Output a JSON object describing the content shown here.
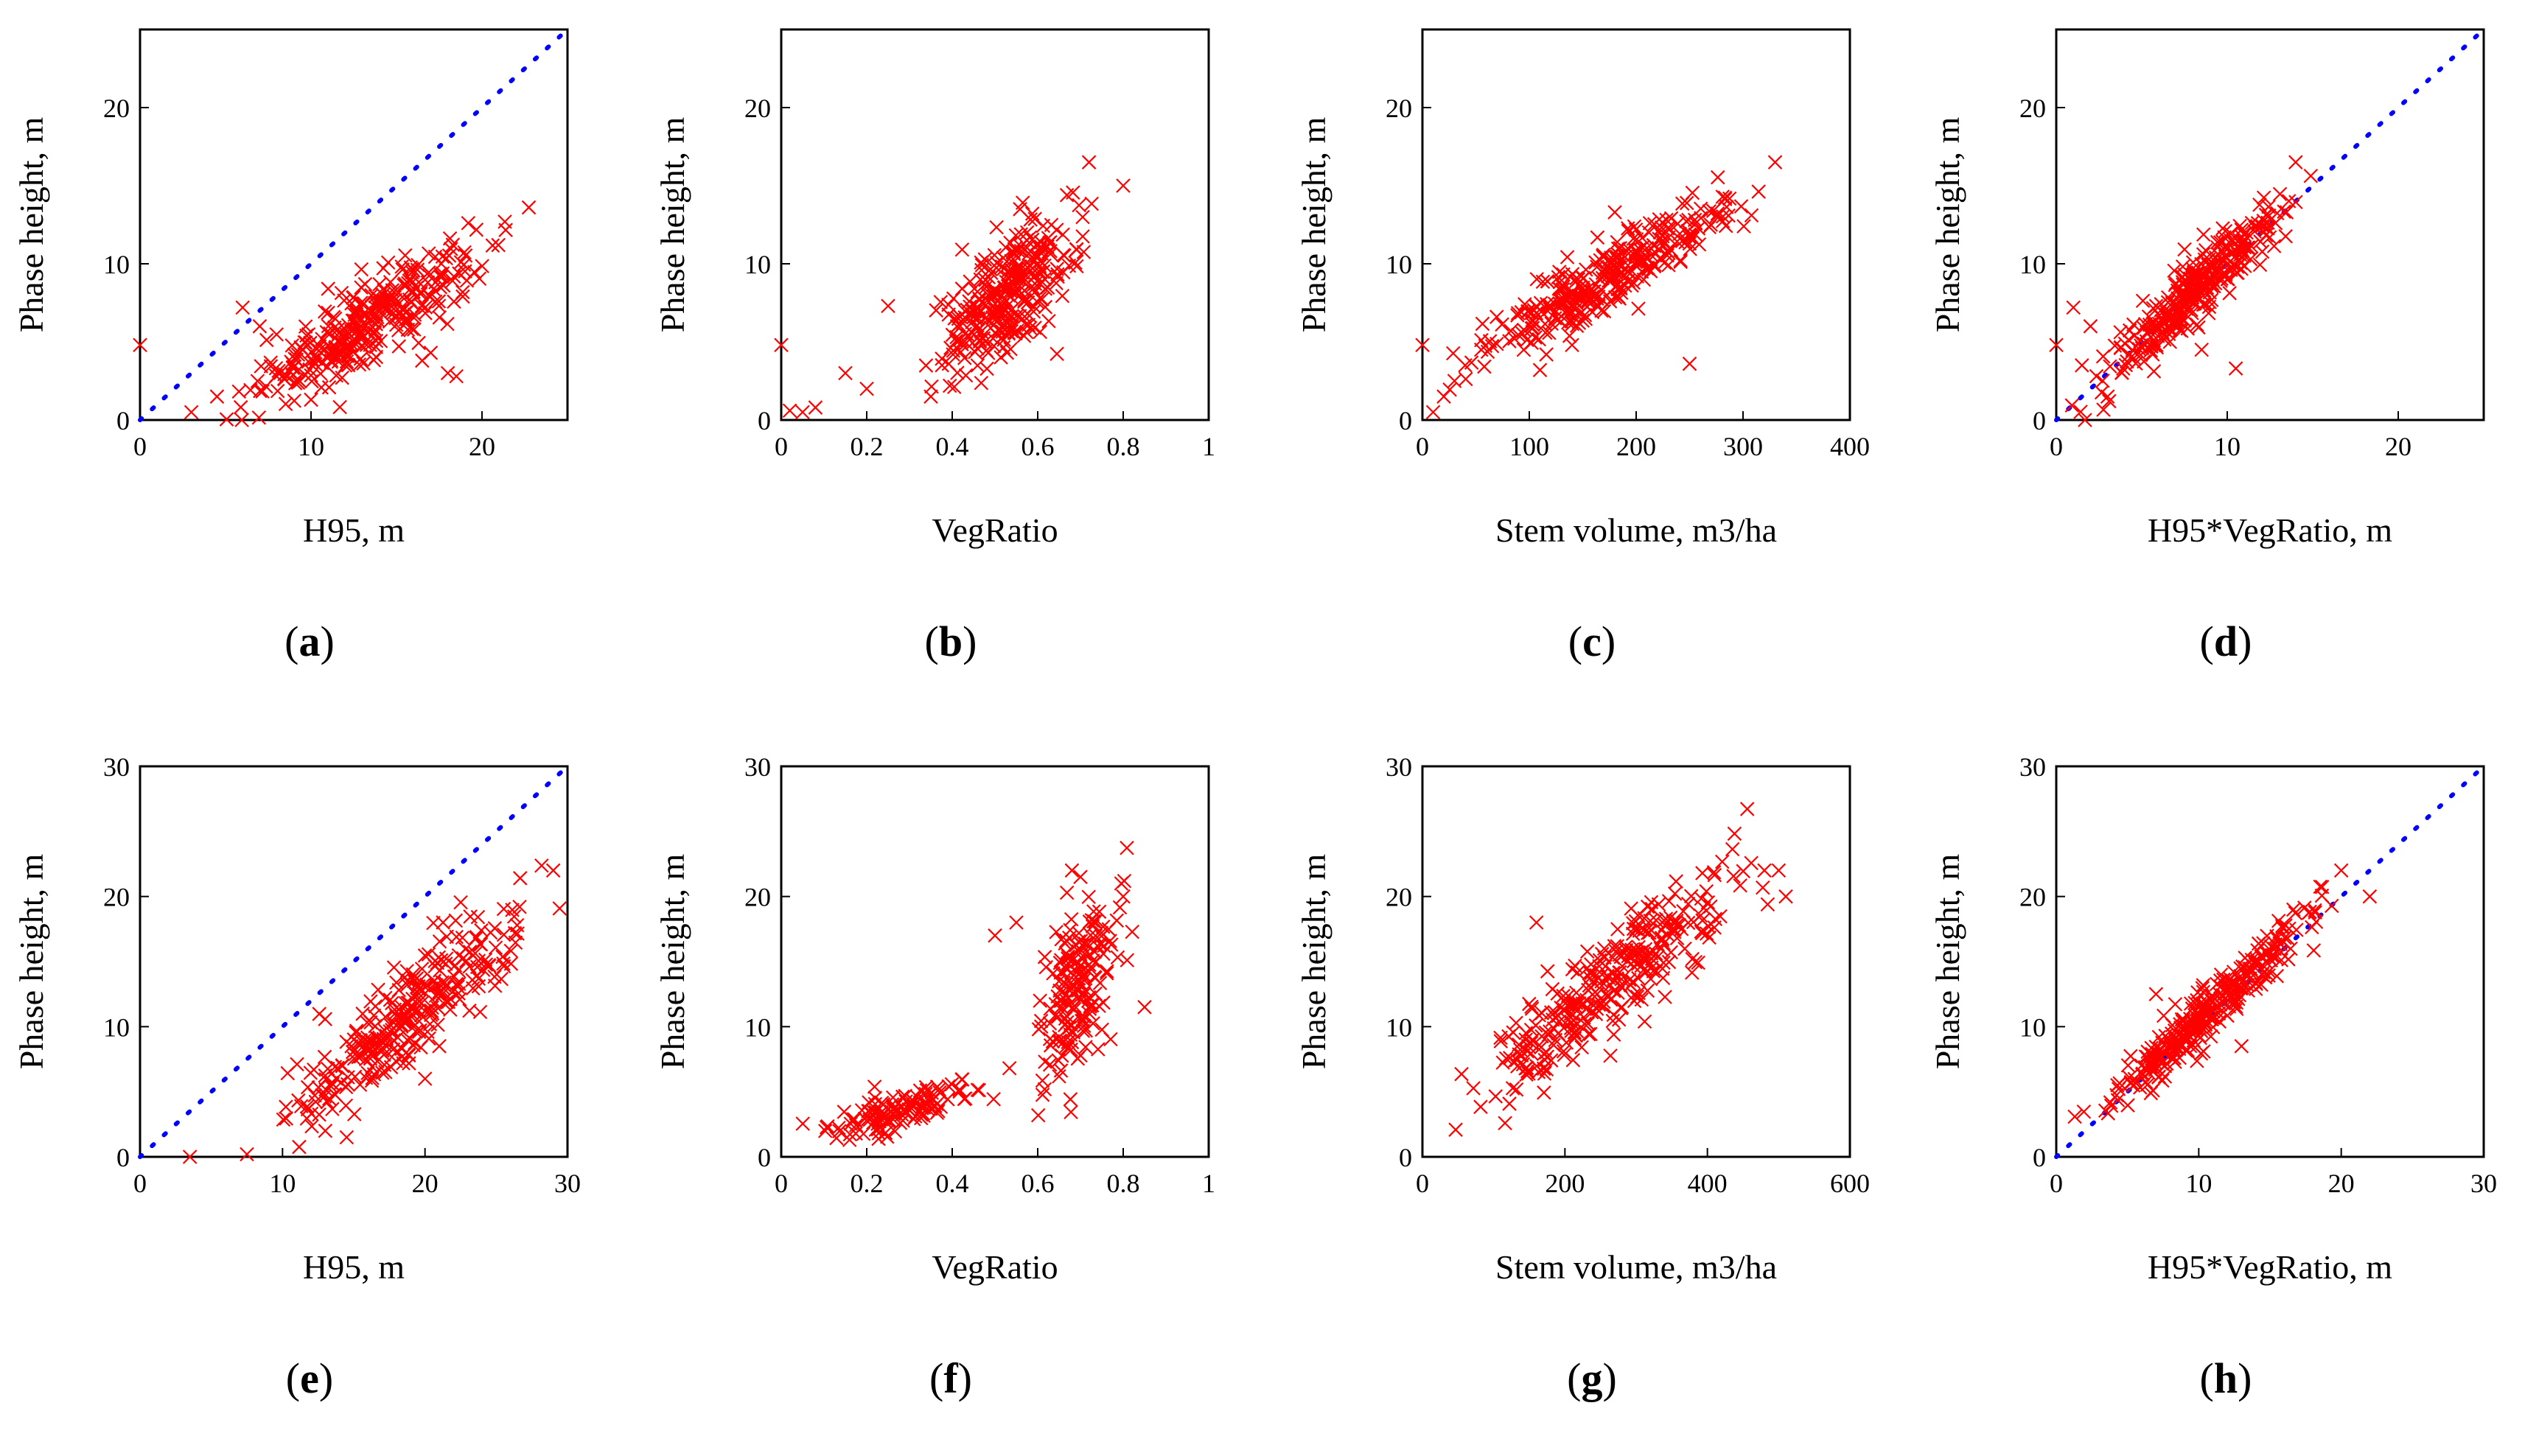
{
  "colors": {
    "marker": "#ff0000",
    "reference_line": "#0000ff",
    "axes": "#000000",
    "background": "#ffffff"
  },
  "chart_data": [
    {
      "panel": "a",
      "label": "(a)",
      "type": "scatter",
      "xlabel": "H95, m",
      "ylabel": "Phase height, m",
      "xlim": [
        0,
        25
      ],
      "ylim": [
        0,
        25
      ],
      "xticks": [
        0,
        10,
        20
      ],
      "yticks": [
        0,
        10,
        20
      ],
      "reference_line": [
        [
          0,
          0
        ],
        [
          25,
          25
        ]
      ],
      "trend": {
        "x_min": 4,
        "x_max": 23,
        "slope": 0.66,
        "intercept": -2.5,
        "spread": 1.3
      },
      "outliers": [
        [
          0,
          4.8
        ],
        [
          3,
          0.5
        ],
        [
          4.5,
          1.5
        ],
        [
          6,
          7.2
        ],
        [
          7,
          6
        ],
        [
          11,
          8.4
        ],
        [
          16.5,
          3.8
        ],
        [
          17,
          4.3
        ],
        [
          18,
          3
        ],
        [
          18.5,
          2.8
        ],
        [
          10,
          1.3
        ],
        [
          12,
          3.5
        ]
      ],
      "n_points": 320
    },
    {
      "panel": "b",
      "label": "(b)",
      "type": "scatter",
      "xlabel": "VegRatio",
      "ylabel": "Phase height, m",
      "xlim": [
        0,
        1
      ],
      "ylim": [
        0,
        25
      ],
      "xticks": [
        0,
        0.2,
        0.4,
        0.6,
        0.8,
        1
      ],
      "yticks": [
        0,
        10,
        20
      ],
      "trend": {
        "x_min": 0.3,
        "x_max": 0.75,
        "slope": 22,
        "intercept": -3.5,
        "spread": 2.0
      },
      "outliers": [
        [
          0,
          4.8
        ],
        [
          0.02,
          0.6
        ],
        [
          0.05,
          0.5
        ],
        [
          0.08,
          0.8
        ],
        [
          0.15,
          3
        ],
        [
          0.25,
          7.3
        ],
        [
          0.2,
          2
        ],
        [
          0.8,
          15
        ],
        [
          0.72,
          16.5
        ],
        [
          0.35,
          1.5
        ]
      ],
      "n_points": 300
    },
    {
      "panel": "c",
      "label": "(c)",
      "type": "scatter",
      "xlabel": "Stem volume, m3/ha",
      "ylabel": "Phase height, m",
      "xlim": [
        0,
        400
      ],
      "ylim": [
        0,
        25
      ],
      "xticks": [
        0,
        100,
        200,
        300,
        400
      ],
      "yticks": [
        0,
        10,
        20
      ],
      "trend": {
        "x_min": 5,
        "x_max": 340,
        "slope": 0.037,
        "intercept": 2.8,
        "spread": 1.1
      },
      "outliers": [
        [
          0,
          4.8
        ],
        [
          10,
          0.5
        ],
        [
          20,
          1.5
        ],
        [
          30,
          2.5
        ],
        [
          40,
          3.5
        ],
        [
          55,
          4.5
        ],
        [
          110,
          3.2
        ],
        [
          180,
          13.3
        ],
        [
          185,
          11
        ],
        [
          140,
          4.8
        ],
        [
          250,
          3.6
        ],
        [
          330,
          16.5
        ]
      ],
      "n_points": 320
    },
    {
      "panel": "d",
      "label": "(d)",
      "type": "scatter",
      "xlabel": "H95*VegRatio, m",
      "ylabel": "Phase height, m",
      "xlim": [
        0,
        25
      ],
      "ylim": [
        0,
        25
      ],
      "xticks": [
        0,
        10,
        20
      ],
      "yticks": [
        0,
        10,
        20
      ],
      "reference_line": [
        [
          0,
          0
        ],
        [
          25,
          25
        ]
      ],
      "trend": {
        "x_min": 0.2,
        "x_max": 16,
        "slope": 1.0,
        "intercept": 0,
        "spread": 1.0
      },
      "outliers": [
        [
          0,
          4.8
        ],
        [
          1,
          7.2
        ],
        [
          2,
          6
        ],
        [
          1.5,
          3.5
        ],
        [
          8.5,
          4.5
        ],
        [
          10.5,
          3.3
        ],
        [
          3,
          1.5
        ],
        [
          14,
          16.5
        ]
      ],
      "n_points": 320
    },
    {
      "panel": "e",
      "label": "(e)",
      "type": "scatter",
      "xlabel": "H95, m",
      "ylabel": "Phase height, m",
      "xlim": [
        0,
        30
      ],
      "ylim": [
        0,
        30
      ],
      "xticks": [
        0,
        10,
        20,
        30
      ],
      "yticks": [
        0,
        10,
        20,
        30
      ],
      "reference_line": [
        [
          0,
          0
        ],
        [
          30,
          30
        ]
      ],
      "trend": {
        "x_min": 7,
        "x_max": 30,
        "slope": 0.93,
        "intercept": -6.5,
        "spread": 1.8
      },
      "outliers": [
        [
          3.5,
          0
        ],
        [
          7.5,
          0.2
        ],
        [
          13,
          2
        ],
        [
          14.5,
          1.5
        ],
        [
          20,
          6
        ],
        [
          21,
          8.5
        ],
        [
          29,
          22
        ]
      ],
      "n_points": 300
    },
    {
      "panel": "f",
      "label": "(f)",
      "type": "scatter",
      "xlabel": "VegRatio",
      "ylabel": "Phase height, m",
      "xlim": [
        0,
        1
      ],
      "ylim": [
        0,
        30
      ],
      "xticks": [
        0,
        0.2,
        0.4,
        0.6,
        0.8,
        1
      ],
      "yticks": [
        0,
        10,
        20,
        30
      ],
      "trend": {
        "x_min": 0.0,
        "x_max": 0.55,
        "slope": 10,
        "intercept": 0.8,
        "spread": 0.8
      },
      "trend2": {
        "x_min": 0.55,
        "x_max": 0.85,
        "slope": 45,
        "intercept": -18,
        "spread": 3.0
      },
      "outliers": [
        [
          0.55,
          18
        ],
        [
          0.5,
          17
        ],
        [
          0.68,
          22
        ],
        [
          0.7,
          21.5
        ],
        [
          0.85,
          11.5
        ],
        [
          0.8,
          20
        ]
      ],
      "n_points": 300
    },
    {
      "panel": "g",
      "label": "(g)",
      "type": "scatter",
      "xlabel": "Stem volume, m3/ha",
      "ylabel": "Phase height, m",
      "xlim": [
        0,
        600
      ],
      "ylim": [
        0,
        30
      ],
      "xticks": [
        0,
        200,
        400,
        600
      ],
      "yticks": [
        0,
        10,
        20,
        30
      ],
      "trend": {
        "x_min": 3,
        "x_max": 520,
        "slope": 0.045,
        "intercept": 1.5,
        "spread": 1.8
      },
      "outliers": [
        [
          480,
          22
        ],
        [
          500,
          22
        ],
        [
          510,
          20
        ],
        [
          300,
          17.5
        ],
        [
          160,
          18
        ]
      ],
      "n_points": 320
    },
    {
      "panel": "h",
      "label": "(h)",
      "type": "scatter",
      "xlabel": "H95*VegRatio, m",
      "ylabel": "Phase height, m",
      "xlim": [
        0,
        30
      ],
      "ylim": [
        0,
        30
      ],
      "xticks": [
        0,
        10,
        20,
        30
      ],
      "yticks": [
        0,
        10,
        20,
        30
      ],
      "reference_line": [
        [
          0,
          0
        ],
        [
          30,
          30
        ]
      ],
      "trend": {
        "x_min": 0.2,
        "x_max": 22,
        "slope": 1.0,
        "intercept": 0.5,
        "spread": 1.0
      },
      "outliers": [
        [
          7,
          12.5
        ],
        [
          13,
          8.5
        ],
        [
          20,
          22
        ],
        [
          22,
          20
        ]
      ],
      "n_points": 320
    }
  ]
}
